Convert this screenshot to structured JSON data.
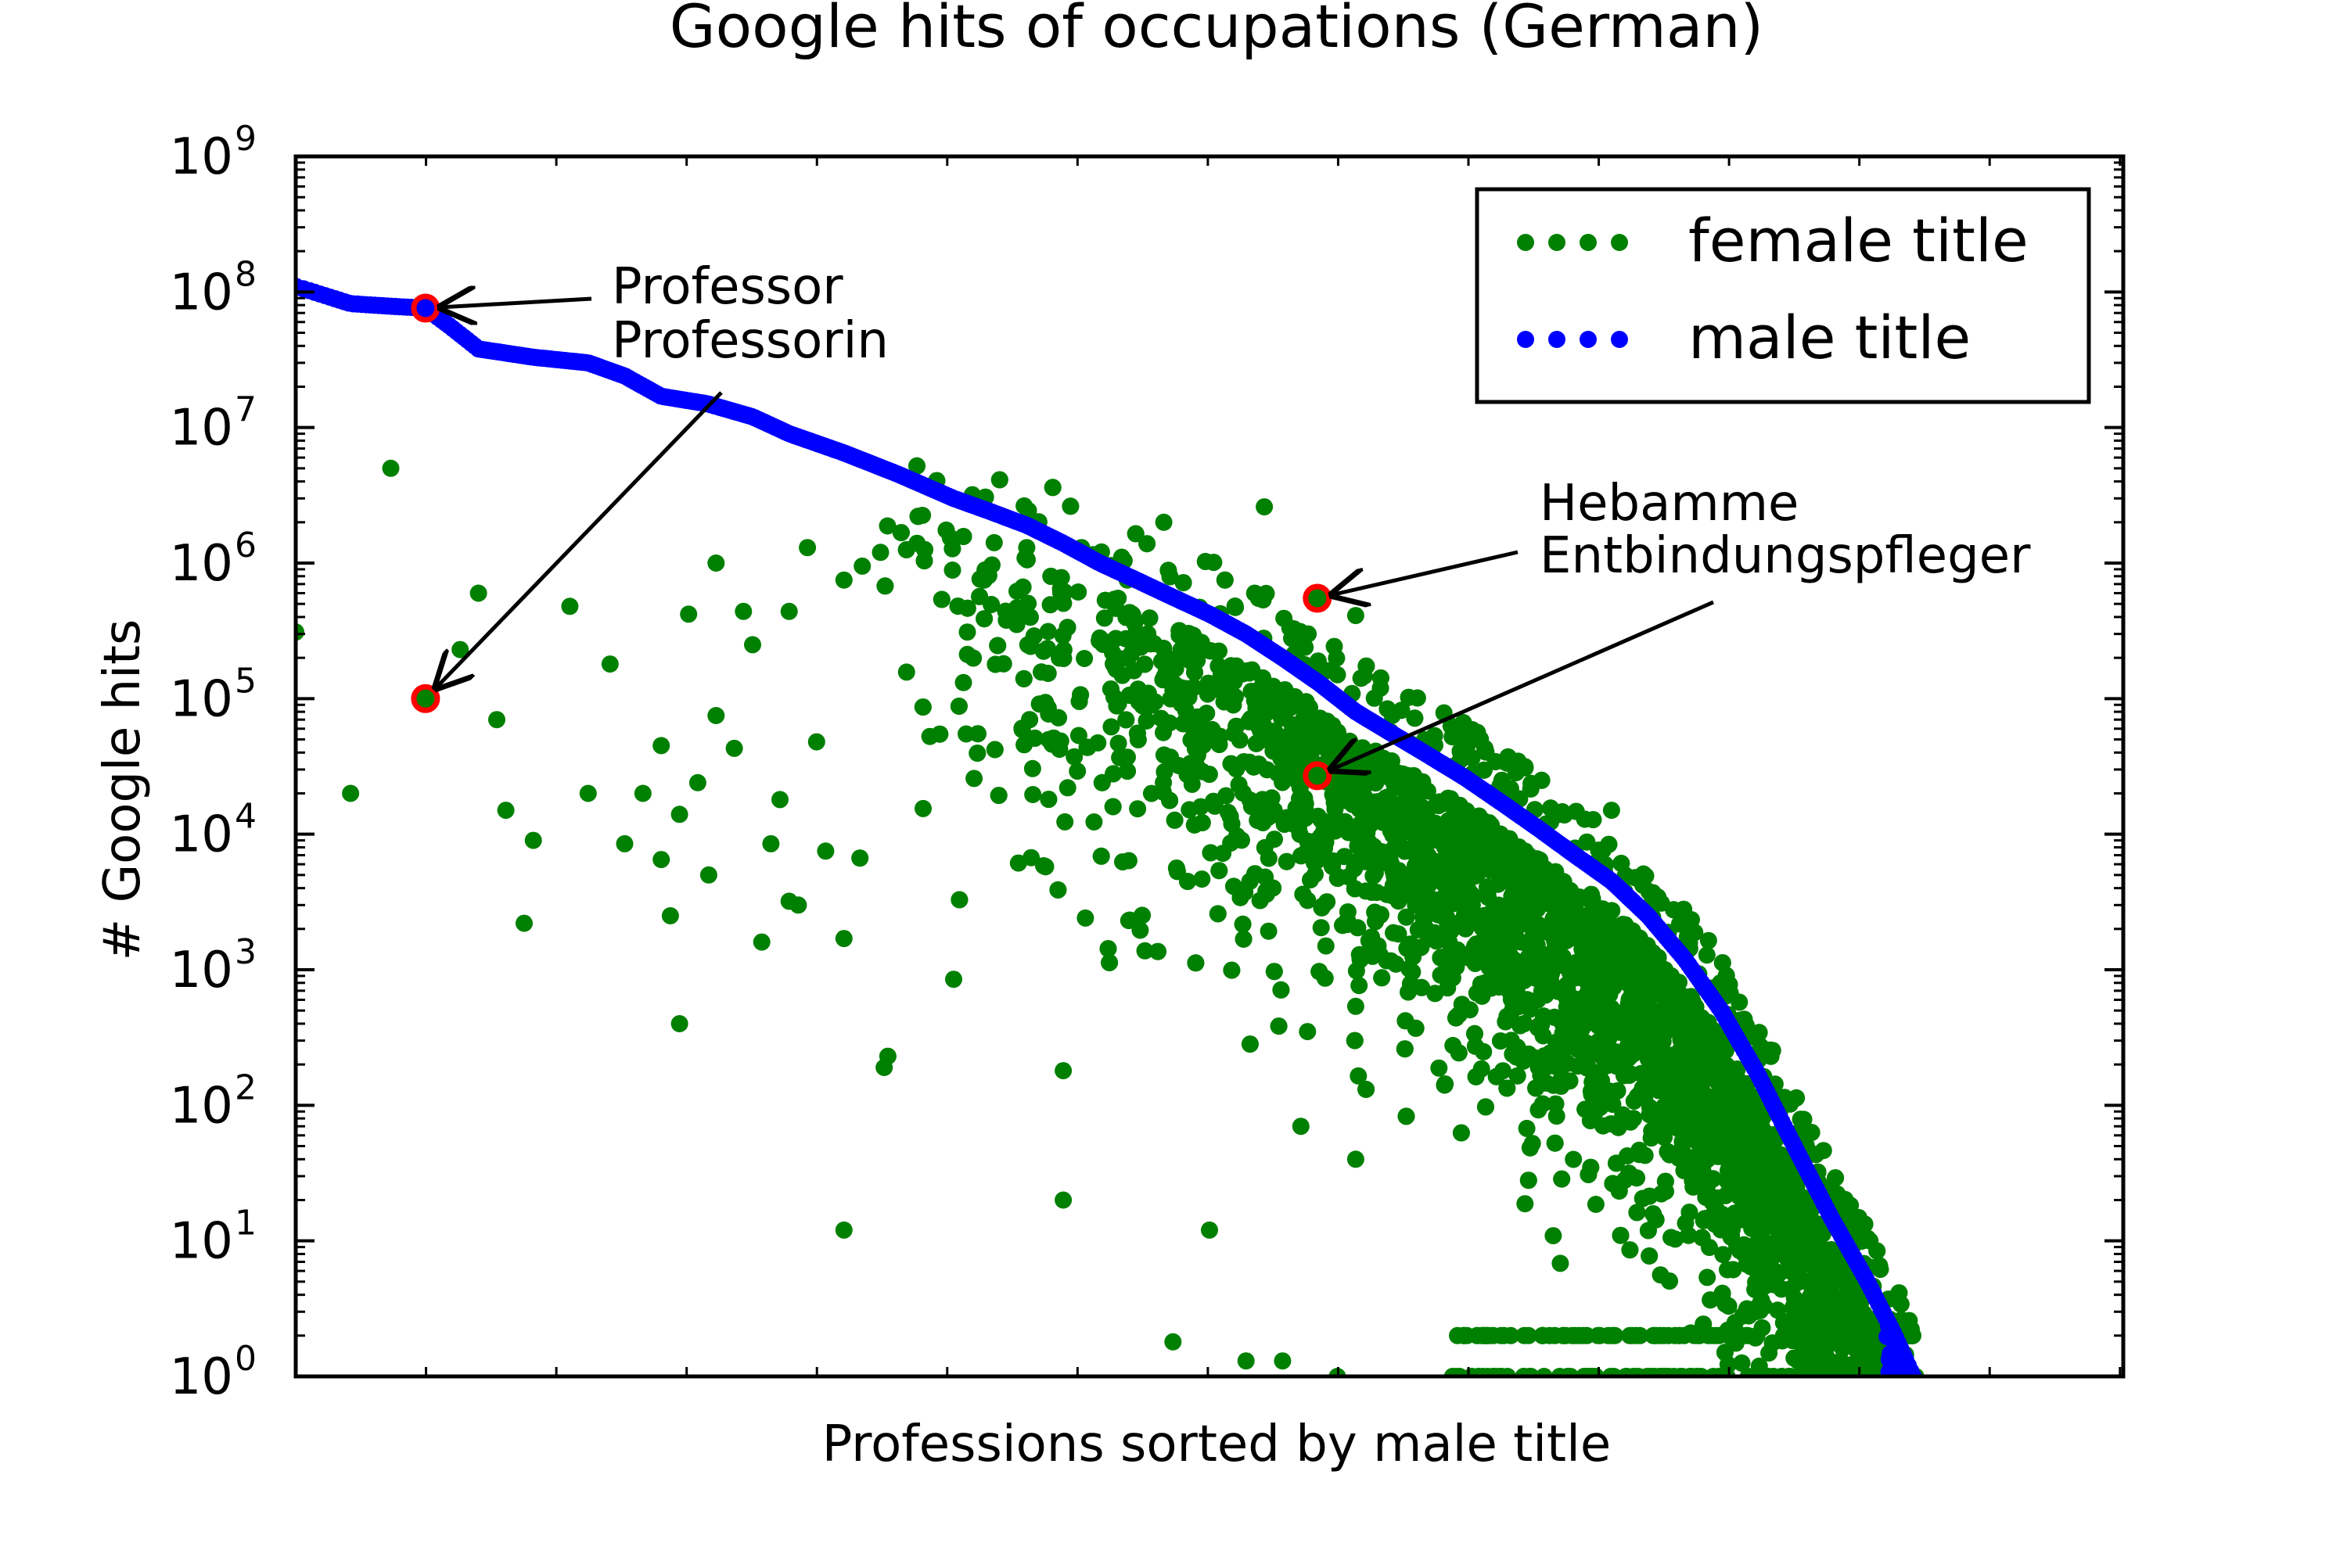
{
  "chart_data": {
    "type": "scatter",
    "title": "Google hits of occupations (German)",
    "xlabel": "Professions sorted by male title",
    "ylabel": "# Google hits",
    "yscale": "log",
    "ylim": [
      1,
      1000000000
    ],
    "xlim": [
      0,
      1
    ],
    "grid": false,
    "legend_position": "top-right",
    "yticks": [
      {
        "base": "10",
        "exp": "0"
      },
      {
        "base": "10",
        "exp": "1"
      },
      {
        "base": "10",
        "exp": "2"
      },
      {
        "base": "10",
        "exp": "3"
      },
      {
        "base": "10",
        "exp": "4"
      },
      {
        "base": "10",
        "exp": "5"
      },
      {
        "base": "10",
        "exp": "6"
      },
      {
        "base": "10",
        "exp": "7"
      },
      {
        "base": "10",
        "exp": "8"
      },
      {
        "base": "10",
        "exp": "9"
      }
    ],
    "series": [
      {
        "name": "female title",
        "color": "#008000",
        "generated_points": 5000
      },
      {
        "name": "male title",
        "color": "#0000ff"
      }
    ],
    "male_curve": [
      [
        0,
        110000000
      ],
      [
        0.03,
        82000000
      ],
      [
        0.055,
        78000000
      ],
      [
        0.071,
        76000000
      ],
      [
        0.085,
        55000000
      ],
      [
        0.1,
        38000000
      ],
      [
        0.13,
        33000000
      ],
      [
        0.16,
        30000000
      ],
      [
        0.18,
        24000000
      ],
      [
        0.2,
        17000000
      ],
      [
        0.225,
        15000000
      ],
      [
        0.25,
        12000000
      ],
      [
        0.27,
        9000000
      ],
      [
        0.3,
        6500000
      ],
      [
        0.33,
        4500000
      ],
      [
        0.36,
        3000000
      ],
      [
        0.38,
        2400000
      ],
      [
        0.4,
        1900000
      ],
      [
        0.42,
        1400000
      ],
      [
        0.44,
        1000000
      ],
      [
        0.46,
        750000
      ],
      [
        0.48,
        560000
      ],
      [
        0.5,
        420000
      ],
      [
        0.52,
        300000
      ],
      [
        0.54,
        200000
      ],
      [
        0.56,
        130000
      ],
      [
        0.58,
        80000
      ],
      [
        0.6,
        55000
      ],
      [
        0.62,
        38000
      ],
      [
        0.64,
        26000
      ],
      [
        0.66,
        17000
      ],
      [
        0.68,
        11000
      ],
      [
        0.7,
        7000
      ],
      [
        0.72,
        4500
      ],
      [
        0.74,
        2500
      ],
      [
        0.76,
        1200
      ],
      [
        0.78,
        500
      ],
      [
        0.8,
        170
      ],
      [
        0.82,
        50
      ],
      [
        0.84,
        15
      ],
      [
        0.86,
        5
      ],
      [
        0.875,
        2
      ],
      [
        0.885,
        1
      ]
    ],
    "female_highlights": [
      [
        0.071,
        100000
      ],
      [
        0.559,
        550000
      ],
      [
        0.559,
        27000
      ]
    ],
    "female_outliers": [
      [
        0,
        310000
      ],
      [
        0.03,
        20000
      ],
      [
        0.052,
        5000000
      ],
      [
        0.09,
        230000
      ],
      [
        0.1,
        600000
      ],
      [
        0.11,
        70000
      ],
      [
        0.115,
        15000
      ],
      [
        0.125,
        2200
      ],
      [
        0.13,
        9000
      ],
      [
        0.15,
        480000
      ],
      [
        0.16,
        20000
      ],
      [
        0.172,
        180000
      ],
      [
        0.18,
        8500
      ],
      [
        0.19,
        20000
      ],
      [
        0.2,
        6500
      ],
      [
        0.21,
        14000
      ],
      [
        0.2,
        45000
      ],
      [
        0.21,
        400
      ],
      [
        0.205,
        2500
      ],
      [
        0.215,
        420000
      ],
      [
        0.22,
        24000
      ],
      [
        0.226,
        5000
      ],
      [
        0.23,
        1000000
      ],
      [
        0.23,
        75000
      ],
      [
        0.24,
        43000
      ],
      [
        0.245,
        440000
      ],
      [
        0.25,
        250000
      ],
      [
        0.255,
        1600
      ],
      [
        0.26,
        8500
      ],
      [
        0.265,
        18000
      ],
      [
        0.27,
        440000
      ],
      [
        0.275,
        3000
      ],
      [
        0.28,
        1300000
      ],
      [
        0.285,
        48000
      ],
      [
        0.29,
        7500
      ],
      [
        0.3,
        750000
      ],
      [
        0.3,
        1700
      ],
      [
        0.31,
        950000
      ],
      [
        0.32,
        1200000
      ],
      [
        0.322,
        190
      ],
      [
        0.324,
        230
      ],
      [
        0.3,
        12
      ],
      [
        0.27,
        3200
      ],
      [
        0.36,
        850
      ],
      [
        0.42,
        20
      ],
      [
        0.42,
        180
      ],
      [
        0.34,
        1400000
      ],
      [
        0.359,
        1500000
      ],
      [
        0.37,
        3000000
      ],
      [
        0.4,
        1300000
      ],
      [
        0.43,
        1300000
      ],
      [
        0.44,
        280000
      ],
      [
        0.45,
        550000
      ],
      [
        0.455,
        750000
      ],
      [
        0.475,
        2000000
      ],
      [
        0.53,
        2600000
      ],
      [
        0.554,
        300000
      ],
      [
        0.57,
        150000
      ],
      [
        0.58,
        410000
      ],
      [
        0.6,
        75000
      ],
      [
        0.64,
        50000
      ],
      [
        0.66,
        25000
      ],
      [
        0.68,
        3200
      ],
      [
        0.72,
        15000
      ],
      [
        0.52,
        1.3
      ],
      [
        0.54,
        1.3
      ],
      [
        0.5,
        12
      ],
      [
        0.48,
        1.8
      ],
      [
        0.57,
        1
      ],
      [
        0.58,
        40
      ],
      [
        0.55,
        70
      ]
    ]
  },
  "annotations": [
    {
      "id": "professor",
      "line1": "Professor",
      "line2": "Professorin"
    },
    {
      "id": "hebamme",
      "line1": "Hebamme",
      "line2": "Entbindungspfleger"
    }
  ],
  "colors": {
    "female": "#008000",
    "male": "#0000ff",
    "highlight": "#ff0000",
    "axis": "#000000"
  }
}
